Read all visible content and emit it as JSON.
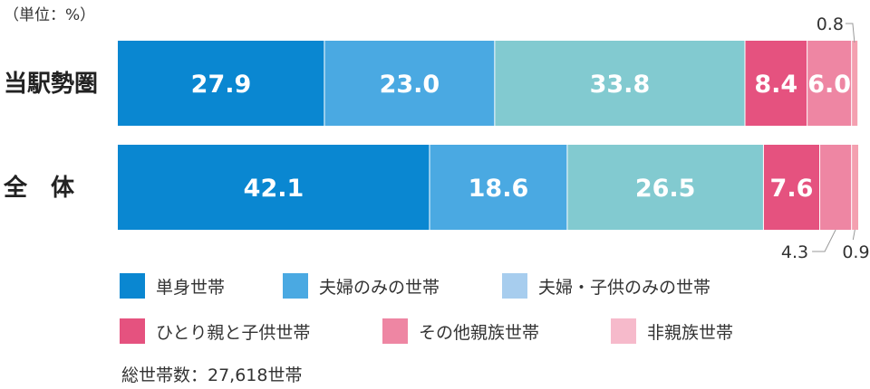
{
  "unit_label": "（単位：%）",
  "chart_data": {
    "type": "bar",
    "orientation": "horizontal",
    "stacked": true,
    "categories": [
      "当駅勢圏",
      "全　体"
    ],
    "series": [
      {
        "name": "単身世帯",
        "values": [
          27.9,
          42.1
        ],
        "color": "#0a87d1"
      },
      {
        "name": "夫婦のみの世帯",
        "values": [
          23.0,
          18.6
        ],
        "color": "#4aa9e2"
      },
      {
        "name": "夫婦・子供のみの世帯",
        "values": [
          33.8,
          26.5
        ],
        "color": "#82cad0"
      },
      {
        "name": "ひとり親と子供世帯",
        "values": [
          8.4,
          7.6
        ],
        "color": "#e5527f"
      },
      {
        "name": "その他親族世帯",
        "values": [
          6.0,
          4.3
        ],
        "color": "#ee86a3"
      },
      {
        "name": "非親族世帯",
        "values": [
          0.8,
          0.9
        ],
        "color": "#f4a0b0"
      }
    ],
    "data_labels": [
      [
        "27.9",
        "23.0",
        "33.8",
        "8.4",
        "6.0",
        "0.8"
      ],
      [
        "42.1",
        "18.6",
        "26.5",
        "7.6",
        "4.3",
        "0.9"
      ]
    ],
    "outside_labels": [
      {
        "row": 0,
        "series": 5,
        "position": "above"
      },
      {
        "row": 1,
        "series": 4,
        "position": "below"
      },
      {
        "row": 1,
        "series": 5,
        "position": "below"
      }
    ],
    "xlim": [
      0,
      100
    ]
  },
  "legend": [
    {
      "label": "単身世帯",
      "color": "#0a87d1"
    },
    {
      "label": "夫婦のみの世帯",
      "color": "#4aa9e2"
    },
    {
      "label": "夫婦・子供のみの世帯",
      "color": "#a7cdee"
    },
    {
      "label": "ひとり親と子供世帯",
      "color": "#e5527f"
    },
    {
      "label": "その他親族世帯",
      "color": "#ee86a3"
    },
    {
      "label": "非親族世帯",
      "color": "#f6bacb"
    }
  ],
  "total_label": "総世帯数：27,618世帯"
}
